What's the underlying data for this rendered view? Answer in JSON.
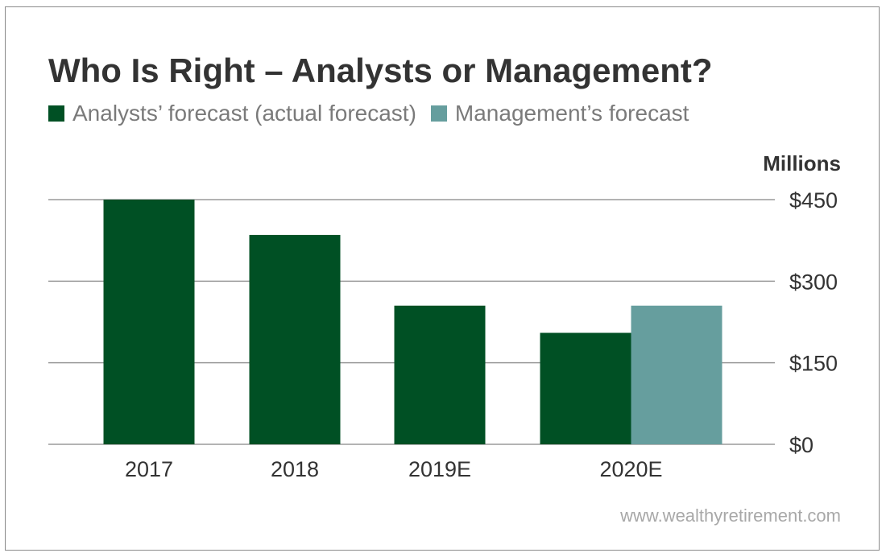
{
  "chart_data": {
    "type": "bar",
    "title": "Who Is Right – Analysts or Management?",
    "unit_label": "Millions",
    "categories": [
      "2017",
      "2018",
      "2019E",
      "2020E"
    ],
    "series": [
      {
        "name": "Analysts’ forecast (actual forecast)",
        "color": "#005024",
        "values": [
          450,
          385,
          255,
          205
        ]
      },
      {
        "name": "Management’s forecast",
        "color": "#669e9e",
        "values": [
          null,
          null,
          null,
          255
        ]
      }
    ],
    "yticks": [
      "$0",
      "$150",
      "$300",
      "$450"
    ],
    "ytick_values": [
      0,
      150,
      300,
      450
    ],
    "ylim": [
      0,
      450
    ],
    "grid": true,
    "legend_position": "top-left",
    "axis_position": "right"
  },
  "source": "www.wealthyretirement.com",
  "colors": {
    "title": "#333333",
    "legend_text": "#7a7a7a",
    "grid": "#9a9a9a",
    "watermark": "#a8a8a8"
  }
}
